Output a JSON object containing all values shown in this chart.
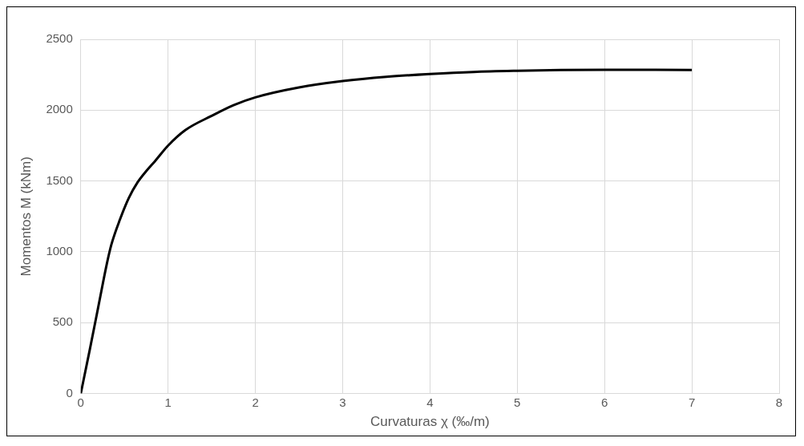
{
  "chart_data": {
    "type": "line",
    "xlabel": "Curvaturas χ (‰/m)",
    "ylabel": "Momentos M (kNm)",
    "x": [
      0,
      0.1,
      0.2,
      0.3,
      0.35,
      0.45,
      0.55,
      0.65,
      0.75,
      0.85,
      1,
      1.2,
      1.5,
      1.75,
      2,
      2.5,
      3,
      3.5,
      4,
      4.5,
      5,
      5.5,
      6,
      6.5,
      7
    ],
    "series": [
      {
        "color": "#000000",
        "values": [
          0,
          300,
          610,
          920,
          1050,
          1230,
          1380,
          1490,
          1570,
          1640,
          1750,
          1860,
          1960,
          2035,
          2090,
          2160,
          2205,
          2235,
          2255,
          2270,
          2278,
          2283,
          2285,
          2285,
          2283
        ]
      }
    ],
    "xlim": [
      0,
      8
    ],
    "xticks": [
      0,
      1,
      2,
      3,
      4,
      5,
      6,
      7,
      8
    ],
    "ylim": [
      0,
      2500
    ],
    "yticks": [
      0,
      500,
      1000,
      1500,
      2000,
      2500
    ],
    "grid": true,
    "legend": false,
    "marker": "none",
    "line_style": "solid"
  }
}
